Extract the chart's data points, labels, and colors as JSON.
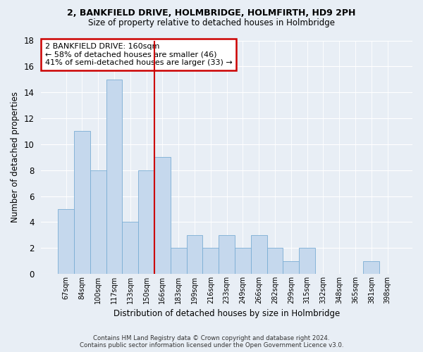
{
  "title_line1": "2, BANKFIELD DRIVE, HOLMBRIDGE, HOLMFIRTH, HD9 2PH",
  "title_line2": "Size of property relative to detached houses in Holmbridge",
  "xlabel": "Distribution of detached houses by size in Holmbridge",
  "ylabel": "Number of detached properties",
  "categories": [
    "67sqm",
    "84sqm",
    "100sqm",
    "117sqm",
    "133sqm",
    "150sqm",
    "166sqm",
    "183sqm",
    "199sqm",
    "216sqm",
    "233sqm",
    "249sqm",
    "266sqm",
    "282sqm",
    "299sqm",
    "315sqm",
    "332sqm",
    "348sqm",
    "365sqm",
    "381sqm",
    "398sqm"
  ],
  "values": [
    5,
    11,
    8,
    15,
    4,
    8,
    9,
    2,
    3,
    2,
    3,
    2,
    3,
    2,
    1,
    2,
    0,
    0,
    0,
    1,
    0
  ],
  "bar_color": "#c5d8ed",
  "bar_edgecolor": "#7aadd4",
  "vline_x": 5.5,
  "vline_color": "#cc0000",
  "annotation_text": "2 BANKFIELD DRIVE: 160sqm\n← 58% of detached houses are smaller (46)\n41% of semi-detached houses are larger (33) →",
  "annotation_box_color": "#cc0000",
  "annotation_fontsize": 8,
  "ylim": [
    0,
    18
  ],
  "yticks": [
    0,
    2,
    4,
    6,
    8,
    10,
    12,
    14,
    16,
    18
  ],
  "footer": "Contains HM Land Registry data © Crown copyright and database right 2024.\nContains public sector information licensed under the Open Government Licence v3.0.",
  "background_color": "#e8eef5",
  "axes_background": "#e8eef5",
  "title_fontsize": 9,
  "subtitle_fontsize": 8.5
}
